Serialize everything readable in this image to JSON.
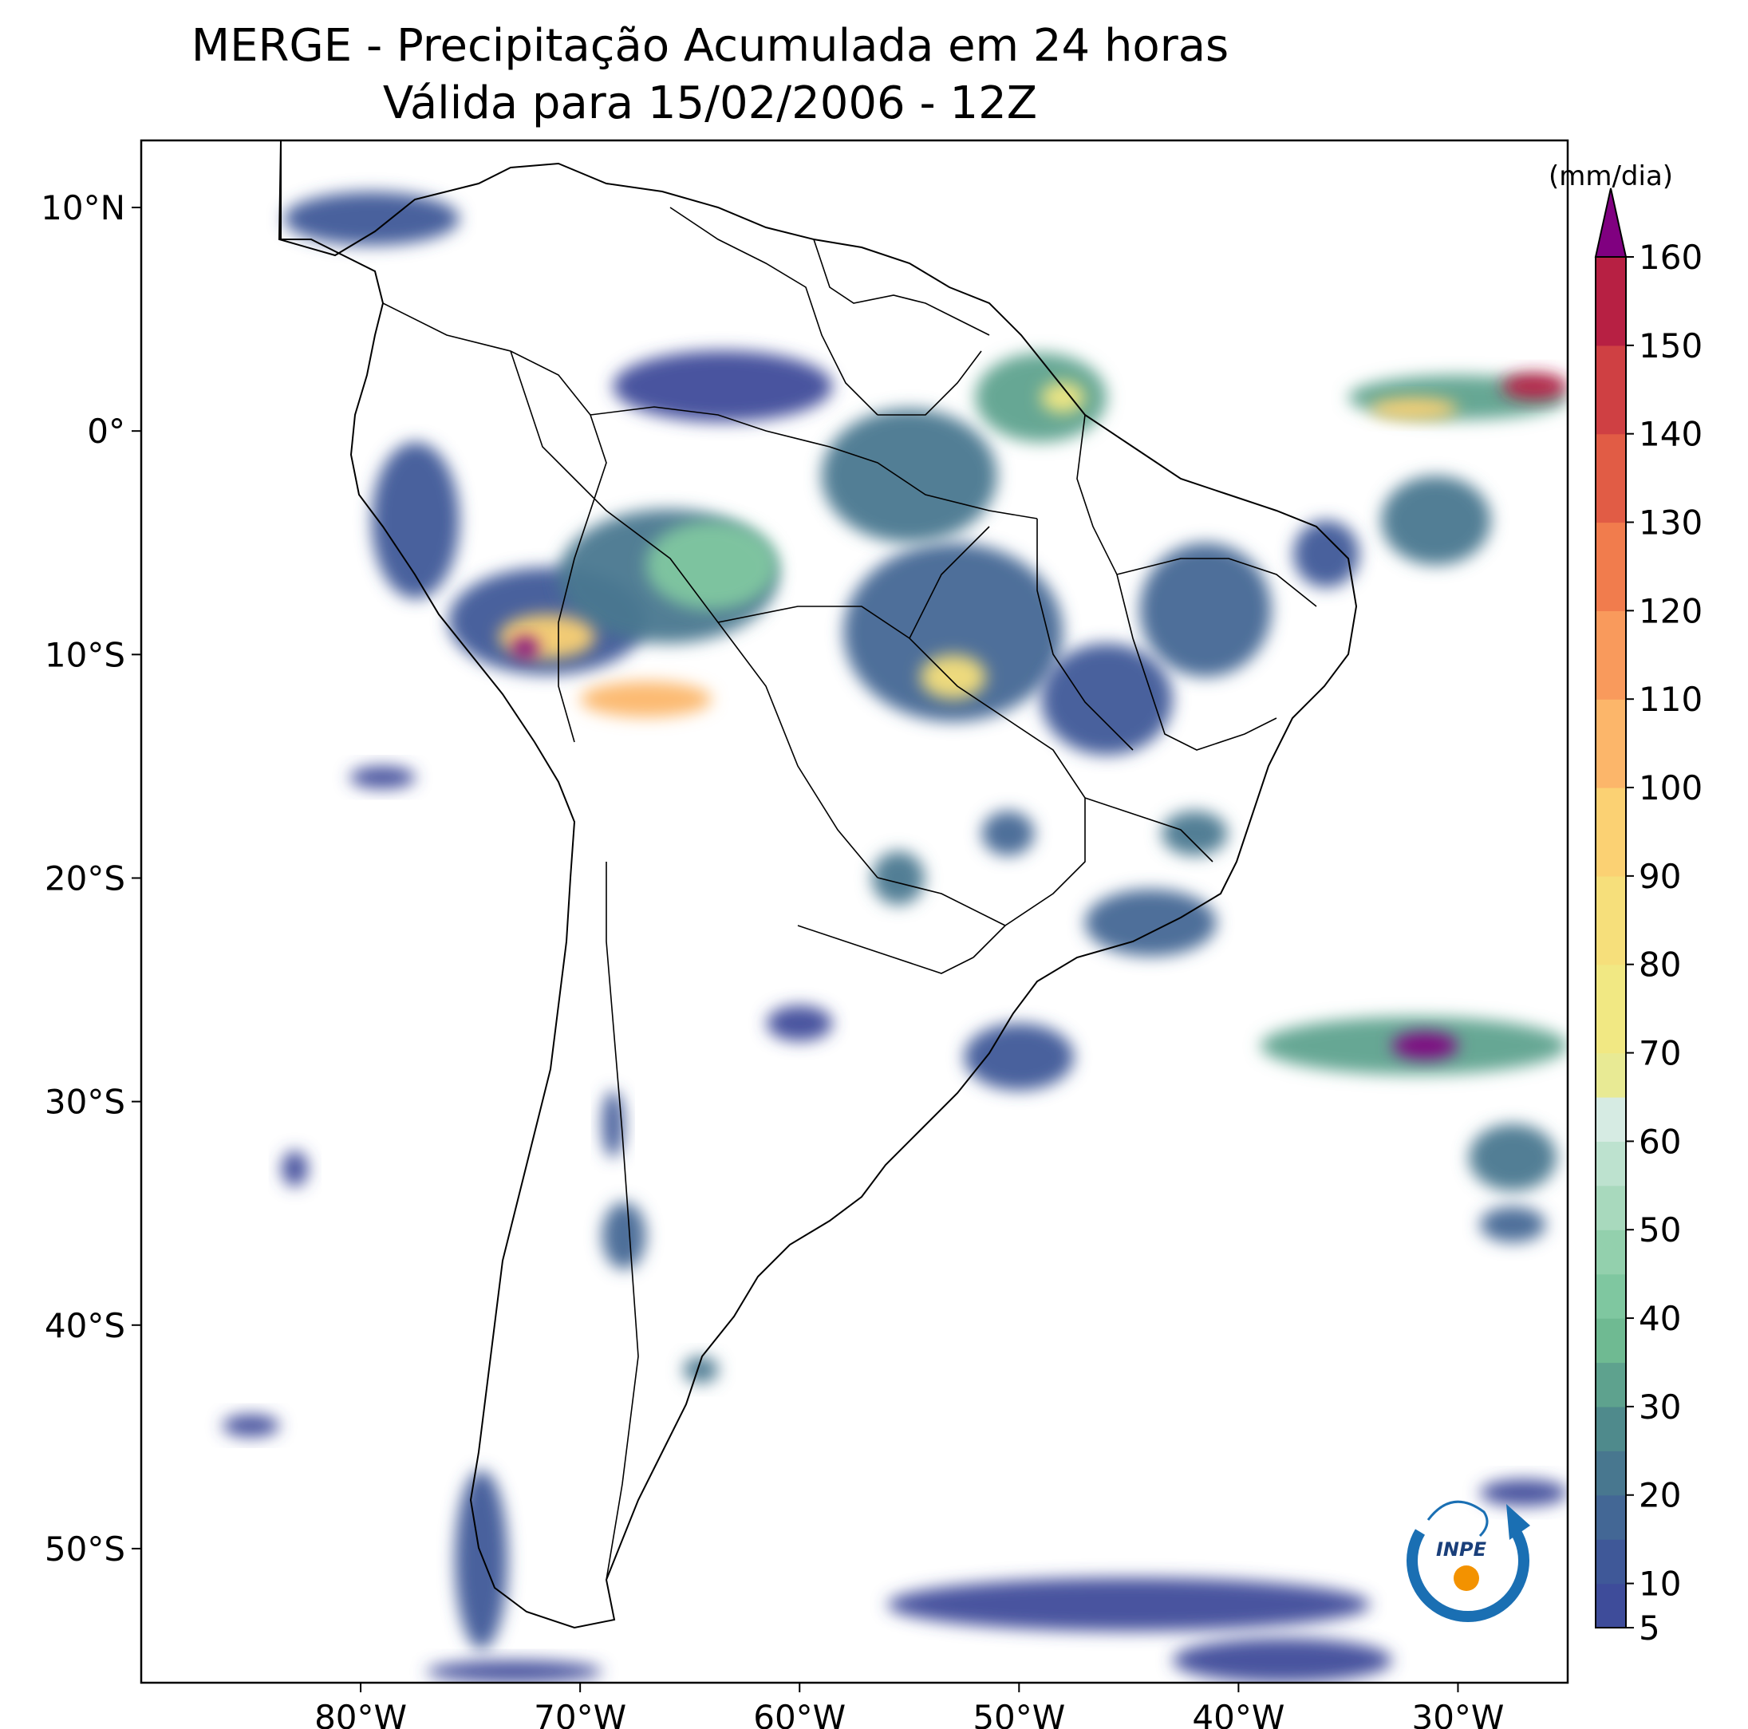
{
  "title_line1": "MERGE - Precipitação Acumulada em 24 horas",
  "title_line2": "Válida para 15/02/2006 - 12Z",
  "colorbar": {
    "unit": "(mm/dia)",
    "min": 5,
    "max": 160,
    "tick_values": [
      5,
      10,
      20,
      30,
      40,
      50,
      60,
      70,
      80,
      90,
      100,
      110,
      120,
      130,
      140,
      150,
      160
    ],
    "tick_labels": [
      "5",
      "10",
      "20",
      "30",
      "40",
      "50",
      "60",
      "70",
      "80",
      "90",
      "100",
      "110",
      "120",
      "130",
      "140",
      "150",
      "160"
    ],
    "extend_color": "#800080",
    "bands": [
      {
        "from": 5,
        "to": 10,
        "color": "#3e4c9a"
      },
      {
        "from": 10,
        "to": 15,
        "color": "#3f5898"
      },
      {
        "from": 15,
        "to": 20,
        "color": "#436795"
      },
      {
        "from": 20,
        "to": 25,
        "color": "#48778f"
      },
      {
        "from": 25,
        "to": 30,
        "color": "#4f8a8c"
      },
      {
        "from": 30,
        "to": 35,
        "color": "#5ea28e"
      },
      {
        "from": 35,
        "to": 40,
        "color": "#6fba92"
      },
      {
        "from": 40,
        "to": 45,
        "color": "#7fc7a0"
      },
      {
        "from": 45,
        "to": 50,
        "color": "#93d0ad"
      },
      {
        "from": 50,
        "to": 55,
        "color": "#a8d9bd"
      },
      {
        "from": 55,
        "to": 60,
        "color": "#bde2cf"
      },
      {
        "from": 60,
        "to": 65,
        "color": "#d6ebe3"
      },
      {
        "from": 65,
        "to": 70,
        "color": "#e8ea94"
      },
      {
        "from": 70,
        "to": 80,
        "color": "#f1e883"
      },
      {
        "from": 80,
        "to": 90,
        "color": "#f6df7b"
      },
      {
        "from": 90,
        "to": 100,
        "color": "#fbd173"
      },
      {
        "from": 100,
        "to": 110,
        "color": "#fcb66a"
      },
      {
        "from": 110,
        "to": 120,
        "color": "#f99a5c"
      },
      {
        "from": 120,
        "to": 130,
        "color": "#f17c4d"
      },
      {
        "from": 130,
        "to": 140,
        "color": "#e15c45"
      },
      {
        "from": 140,
        "to": 150,
        "color": "#cf4043"
      },
      {
        "from": 150,
        "to": 160,
        "color": "#b72043"
      }
    ]
  },
  "map": {
    "lon_range": [
      -90,
      -25
    ],
    "lat_range": [
      -56,
      13
    ],
    "lon_ticks": [
      -80,
      -70,
      -60,
      -50,
      -40,
      -30
    ],
    "lon_tick_labels": [
      "80°W",
      "70°W",
      "60°W",
      "50°W",
      "40°W",
      "30°W"
    ],
    "lat_ticks": [
      10,
      0,
      -10,
      -20,
      -30,
      -40,
      -50
    ],
    "lat_tick_labels": [
      "10°N",
      "0°",
      "10°S",
      "20°S",
      "30°S",
      "40°S",
      "50°S"
    ],
    "precip_cells": [
      {
        "lon": -63.5,
        "lat": 2.0,
        "rlon": 5.0,
        "rlat": 1.6,
        "mm": 8
      },
      {
        "lon": -71.5,
        "lat": -8.5,
        "rlon": 4.5,
        "rlat": 2.4,
        "mm": 14
      },
      {
        "lon": -66.0,
        "lat": -6.5,
        "rlon": 5.0,
        "rlat": 3.0,
        "mm": 22
      },
      {
        "lon": -64.0,
        "lat": -6.0,
        "rlon": 3.0,
        "rlat": 2.0,
        "mm": 40
      },
      {
        "lon": -71.5,
        "lat": -9.2,
        "rlon": 2.2,
        "rlat": 1.0,
        "mm": 95
      },
      {
        "lon": -67.0,
        "lat": -12.0,
        "rlon": 3.0,
        "rlat": 0.8,
        "mm": 100
      },
      {
        "lon": -72.5,
        "lat": -9.7,
        "rlon": 0.6,
        "rlat": 0.5,
        "mm": 165
      },
      {
        "lon": -53.0,
        "lat": -9.0,
        "rlon": 5.0,
        "rlat": 4.0,
        "mm": 18
      },
      {
        "lon": -53.0,
        "lat": -11.0,
        "rlon": 1.5,
        "rlat": 1.0,
        "mm": 85
      },
      {
        "lon": -55.0,
        "lat": -2.0,
        "rlon": 4.0,
        "rlat": 3.0,
        "mm": 20
      },
      {
        "lon": -49.0,
        "lat": 1.5,
        "rlon": 3.0,
        "rlat": 2.0,
        "mm": 30
      },
      {
        "lon": -48.0,
        "lat": 1.5,
        "rlon": 1.0,
        "rlat": 0.7,
        "mm": 70
      },
      {
        "lon": -41.5,
        "lat": -8.0,
        "rlon": 3.0,
        "rlat": 3.0,
        "mm": 15
      },
      {
        "lon": -46.0,
        "lat": -12.0,
        "rlon": 3.0,
        "rlat": 2.5,
        "mm": 12
      },
      {
        "lon": -55.5,
        "lat": -20.0,
        "rlon": 1.2,
        "rlat": 1.2,
        "mm": 20
      },
      {
        "lon": -44.0,
        "lat": -22.0,
        "rlon": 3.0,
        "rlat": 1.5,
        "mm": 18
      },
      {
        "lon": -50.0,
        "lat": -28.0,
        "rlon": 2.5,
        "rlat": 1.5,
        "mm": 12
      },
      {
        "lon": -79.5,
        "lat": 9.5,
        "rlon": 4.0,
        "rlat": 1.2,
        "mm": 10
      },
      {
        "lon": -77.5,
        "lat": -4.0,
        "rlon": 2.0,
        "rlat": 3.5,
        "mm": 14
      },
      {
        "lon": -30.0,
        "lat": 1.5,
        "rlon": 5.0,
        "rlat": 1.0,
        "mm": 30
      },
      {
        "lon": -26.5,
        "lat": 2.0,
        "rlon": 1.5,
        "rlat": 0.6,
        "mm": 160
      },
      {
        "lon": -32.0,
        "lat": 1.0,
        "rlon": 2.0,
        "rlat": 0.5,
        "mm": 90
      },
      {
        "lon": -31.0,
        "lat": -4.0,
        "rlon": 2.5,
        "rlat": 2.0,
        "mm": 20
      },
      {
        "lon": -32.0,
        "lat": -27.5,
        "rlon": 7.0,
        "rlat": 1.3,
        "mm": 30
      },
      {
        "lon": -31.5,
        "lat": -27.5,
        "rlon": 1.5,
        "rlat": 0.6,
        "mm": 165
      },
      {
        "lon": -27.5,
        "lat": -32.5,
        "rlon": 2.0,
        "rlat": 1.5,
        "mm": 20
      },
      {
        "lon": -27.5,
        "lat": -35.5,
        "rlon": 1.5,
        "rlat": 0.8,
        "mm": 15
      },
      {
        "lon": -68.0,
        "lat": -36.0,
        "rlon": 1.0,
        "rlat": 1.5,
        "mm": 18
      },
      {
        "lon": -68.5,
        "lat": -31.0,
        "rlon": 0.5,
        "rlat": 1.5,
        "mm": 10
      },
      {
        "lon": -74.5,
        "lat": -50.5,
        "rlon": 1.2,
        "rlat": 4.0,
        "mm": 14
      },
      {
        "lon": -45.0,
        "lat": -52.5,
        "rlon": 11.0,
        "rlat": 1.2,
        "mm": 8
      },
      {
        "lon": -38.0,
        "lat": -55.0,
        "rlon": 5.0,
        "rlat": 1.0,
        "mm": 7
      },
      {
        "lon": -27.0,
        "lat": -47.5,
        "rlon": 2.0,
        "rlat": 0.6,
        "mm": 8
      },
      {
        "lon": -85.0,
        "lat": -44.5,
        "rlon": 1.3,
        "rlat": 0.5,
        "mm": 9
      },
      {
        "lon": -73.0,
        "lat": -55.5,
        "rlon": 4.0,
        "rlat": 0.5,
        "mm": 8
      },
      {
        "lon": -79.0,
        "lat": -15.5,
        "rlon": 1.5,
        "rlat": 0.5,
        "mm": 9
      },
      {
        "lon": -83.0,
        "lat": -33.0,
        "rlon": 0.6,
        "rlat": 0.8,
        "mm": 8
      },
      {
        "lon": -64.5,
        "lat": -42.0,
        "rlon": 0.8,
        "rlat": 0.6,
        "mm": 20
      },
      {
        "lon": -60.0,
        "lat": -26.5,
        "rlon": 1.5,
        "rlat": 0.8,
        "mm": 9
      },
      {
        "lon": -50.5,
        "lat": -18.0,
        "rlon": 1.2,
        "rlat": 1.0,
        "mm": 18
      },
      {
        "lon": -42.0,
        "lat": -18.0,
        "rlon": 1.5,
        "rlat": 1.0,
        "mm": 22
      },
      {
        "lon": -36.0,
        "lat": -5.5,
        "rlon": 1.5,
        "rlat": 1.5,
        "mm": 12
      }
    ]
  }
}
